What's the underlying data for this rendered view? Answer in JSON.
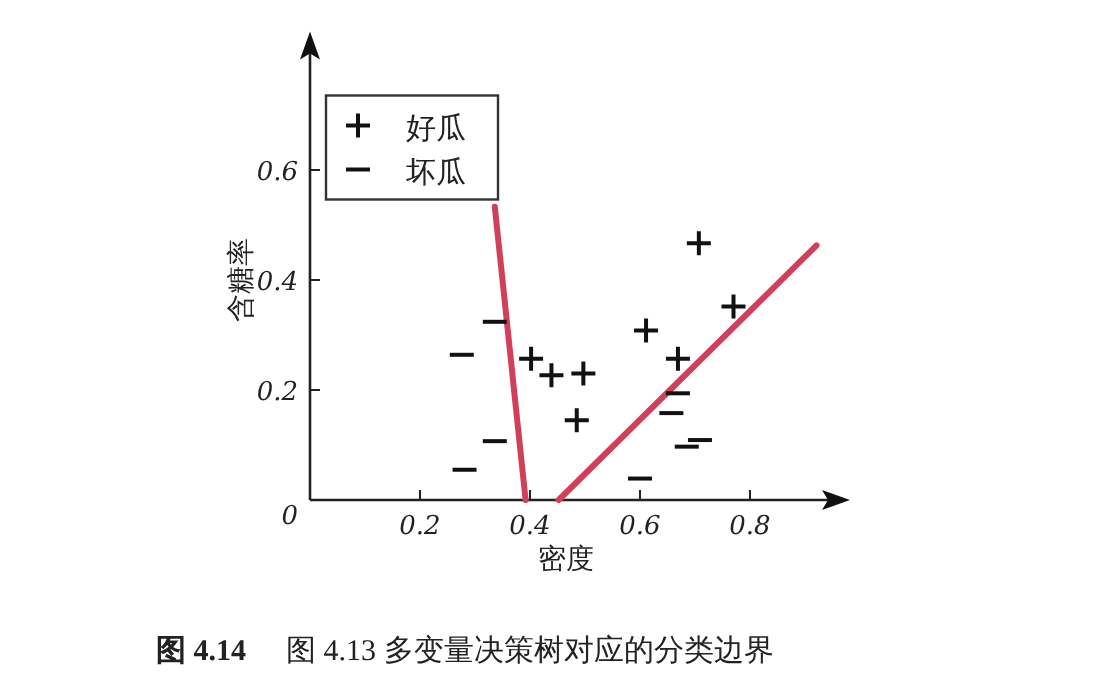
{
  "chart_data": {
    "type": "scatter",
    "title": "图 4.14",
    "subtitle": "图 4.13 多变量决策树对应的分类边界",
    "xlabel": "密度",
    "ylabel": "含糖率",
    "xlim": [
      0,
      0.96
    ],
    "ylim": [
      0,
      0.83
    ],
    "xticks": [
      0.2,
      0.4,
      0.6,
      0.8
    ],
    "yticks": [
      0,
      0.2,
      0.4,
      0.6
    ],
    "grid": false,
    "legend": "top left",
    "series": [
      {
        "name": "好瓜",
        "marker": "cross",
        "color": "#111111",
        "x": [
          0.402,
          0.439,
          0.497,
          0.485,
          0.611,
          0.669,
          0.707,
          0.77
        ],
        "values": [
          0.257,
          0.227,
          0.23,
          0.145,
          0.308,
          0.257,
          0.467,
          0.352
        ]
      },
      {
        "name": "坏瓜",
        "color": "#111111",
        "x": [
          0.276,
          0.336,
          0.336,
          0.281,
          0.6,
          0.669,
          0.657,
          0.685,
          0.709
        ],
        "values": [
          0.264,
          0.324,
          0.107,
          0.055,
          0.039,
          0.194,
          0.158,
          0.097,
          0.109
        ]
      },
      {
        "type": "line",
        "color": "#d0405a",
        "x": [
          0.336,
          0.392
        ],
        "values": [
          0.533,
          0
        ]
      },
      {
        "type": "line",
        "color": "#d0405a",
        "x": [
          0.452,
          0.921
        ],
        "values": [
          0,
          0.463
        ]
      }
    ]
  }
}
